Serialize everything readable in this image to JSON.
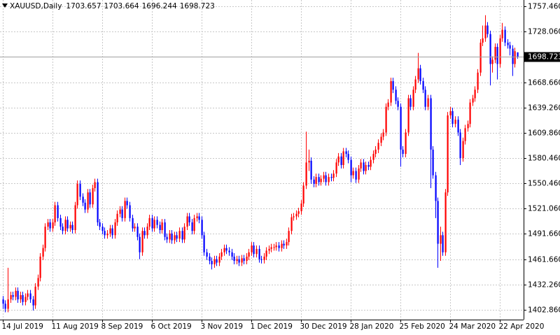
{
  "chart_data": {
    "type": "candlestick",
    "title": "XAUUSD,Daily",
    "up_color": "#ff0000",
    "down_color": "#0000ff",
    "grid": true,
    "xlim": [
      -1.1,
      209.6
    ],
    "xticks": [
      {
        "value": 0,
        "label": "14 Jul 2019"
      },
      {
        "value": 20,
        "label": "11 Aug 2019"
      },
      {
        "value": 40,
        "label": "8 Sep 2019"
      },
      {
        "value": 60,
        "label": "6 Oct 2019"
      },
      {
        "value": 80,
        "label": "3 Nov 2019"
      },
      {
        "value": 100,
        "label": "1 Dec 2019"
      },
      {
        "value": 120,
        "label": "30 Dec 2019"
      },
      {
        "value": 140,
        "label": "28 Jan 2020"
      },
      {
        "value": 160,
        "label": "25 Feb 2020"
      },
      {
        "value": 180,
        "label": "24 Mar 2020"
      },
      {
        "value": 200,
        "label": "22 Apr 2020"
      }
    ],
    "ylim": [
      1391.4,
      1764.8
    ],
    "yticks": [
      {
        "value": 1757.46,
        "label": "1757.460"
      },
      {
        "value": 1728.06,
        "label": "1728.060"
      },
      {
        "value": 1668.66,
        "label": "1668.660"
      },
      {
        "value": 1639.26,
        "label": "1639.260"
      },
      {
        "value": 1609.86,
        "label": "1609.860"
      },
      {
        "value": 1580.46,
        "label": "1580.460"
      },
      {
        "value": 1550.46,
        "label": "1550.460"
      },
      {
        "value": 1521.06,
        "label": "1521.060"
      },
      {
        "value": 1491.66,
        "label": "1491.660"
      },
      {
        "value": 1461.66,
        "label": "1461.660"
      },
      {
        "value": 1432.26,
        "label": "1432.260"
      },
      {
        "value": 1402.86,
        "label": "1402.860"
      }
    ],
    "open": [
      1415,
      1410,
      1404,
      1415,
      1420,
      1418,
      1425,
      1415,
      1420,
      1412,
      1418,
      1422,
      1415,
      1408,
      1430,
      1440,
      1465,
      1475,
      1500,
      1505,
      1498,
      1505,
      1525,
      1510,
      1500,
      1495,
      1508,
      1498,
      1502,
      1496,
      1525,
      1550,
      1535,
      1528,
      1520,
      1540,
      1526,
      1545,
      1552,
      1505,
      1500,
      1495,
      1490,
      1492,
      1498,
      1490,
      1505,
      1515,
      1520,
      1510,
      1530,
      1525,
      1510,
      1498,
      1500,
      1488,
      1470,
      1495,
      1490,
      1500,
      1510,
      1498,
      1508,
      1502,
      1496,
      1505,
      1488,
      1485,
      1492,
      1484,
      1490,
      1486,
      1495,
      1485,
      1500,
      1512,
      1505,
      1495,
      1510,
      1512,
      1508,
      1490,
      1470,
      1465,
      1460,
      1456,
      1462,
      1458,
      1465,
      1470,
      1475,
      1472,
      1470,
      1465,
      1460,
      1462,
      1458,
      1463,
      1460,
      1465,
      1470,
      1478,
      1468,
      1474,
      1462,
      1461,
      1465,
      1472,
      1474,
      1476,
      1476,
      1478,
      1475,
      1480,
      1478,
      1482,
      1495,
      1511,
      1512,
      1515,
      1518,
      1527,
      1548,
      1575,
      1577,
      1555,
      1550,
      1558,
      1552,
      1556,
      1560,
      1552,
      1558,
      1557,
      1562,
      1575,
      1582,
      1572,
      1588,
      1585,
      1578,
      1560,
      1565,
      1555,
      1568,
      1575,
      1565,
      1572,
      1570,
      1578,
      1585,
      1590,
      1598,
      1605,
      1610,
      1640,
      1645,
      1670,
      1660,
      1647,
      1640,
      1590,
      1585,
      1610,
      1650,
      1640,
      1660,
      1672,
      1685,
      1670,
      1660,
      1640,
      1650,
      1590,
      1560,
      1530,
      1480,
      1490,
      1470,
      1540,
      1630,
      1635,
      1620,
      1625,
      1610,
      1580,
      1600,
      1615,
      1620,
      1645,
      1650,
      1660,
      1680,
      1715,
      1720,
      1735,
      1725,
      1690,
      1695,
      1710,
      1690,
      1720,
      1730,
      1715,
      1712,
      1708,
      1690,
      1703.657
    ],
    "high": [
      1419,
      1414,
      1452,
      1424,
      1424,
      1429,
      1429,
      1424,
      1424,
      1422,
      1426,
      1426,
      1419,
      1434,
      1444,
      1469,
      1479,
      1504,
      1509,
      1509,
      1509,
      1529,
      1529,
      1514,
      1504,
      1512,
      1512,
      1506,
      1506,
      1529,
      1554,
      1554,
      1539,
      1532,
      1544,
      1544,
      1549,
      1556,
      1556,
      1509,
      1504,
      1499,
      1496,
      1502,
      1502,
      1509,
      1519,
      1524,
      1524,
      1534,
      1534,
      1529,
      1514,
      1504,
      1504,
      1492,
      1499,
      1499,
      1504,
      1514,
      1514,
      1512,
      1512,
      1506,
      1509,
      1509,
      1492,
      1496,
      1496,
      1494,
      1494,
      1499,
      1499,
      1504,
      1516,
      1516,
      1509,
      1514,
      1516,
      1516,
      1512,
      1494,
      1474,
      1469,
      1464,
      1466,
      1466,
      1469,
      1474,
      1479,
      1479,
      1476,
      1474,
      1469,
      1466,
      1466,
      1467,
      1467,
      1469,
      1474,
      1482,
      1482,
      1478,
      1478,
      1466,
      1469,
      1476,
      1478,
      1480,
      1480,
      1482,
      1482,
      1484,
      1484,
      1486,
      1499,
      1515,
      1516,
      1519,
      1522,
      1531,
      1552,
      1611,
      1590,
      1581,
      1559,
      1562,
      1562,
      1560,
      1564,
      1564,
      1562,
      1562,
      1566,
      1579,
      1586,
      1586,
      1592,
      1592,
      1589,
      1582,
      1569,
      1569,
      1572,
      1579,
      1579,
      1576,
      1576,
      1582,
      1589,
      1594,
      1602,
      1609,
      1614,
      1644,
      1649,
      1674,
      1674,
      1664,
      1651,
      1644,
      1594,
      1614,
      1654,
      1654,
      1664,
      1676,
      1703,
      1689,
      1674,
      1664,
      1654,
      1654,
      1594,
      1564,
      1534,
      1500,
      1494,
      1544,
      1634,
      1640,
      1639,
      1629,
      1629,
      1614,
      1604,
      1619,
      1624,
      1649,
      1654,
      1664,
      1684,
      1719,
      1735,
      1747,
      1739,
      1729,
      1699,
      1714,
      1714,
      1724,
      1738,
      1734,
      1719,
      1716,
      1712,
      1709,
      1703.664
    ],
    "low": [
      1404,
      1400,
      1400,
      1411,
      1414,
      1414,
      1411,
      1411,
      1408,
      1408,
      1414,
      1411,
      1402,
      1404,
      1426,
      1436,
      1461,
      1471,
      1496,
      1494,
      1494,
      1501,
      1506,
      1496,
      1491,
      1491,
      1494,
      1494,
      1492,
      1492,
      1521,
      1531,
      1524,
      1516,
      1516,
      1522,
      1522,
      1541,
      1501,
      1496,
      1491,
      1486,
      1486,
      1488,
      1486,
      1486,
      1501,
      1511,
      1506,
      1506,
      1521,
      1506,
      1494,
      1494,
      1484,
      1462,
      1466,
      1486,
      1486,
      1496,
      1494,
      1494,
      1498,
      1492,
      1492,
      1484,
      1481,
      1481,
      1480,
      1480,
      1482,
      1482,
      1481,
      1481,
      1496,
      1501,
      1491,
      1491,
      1506,
      1504,
      1486,
      1466,
      1461,
      1456,
      1450,
      1452,
      1454,
      1454,
      1461,
      1466,
      1468,
      1466,
      1461,
      1456,
      1456,
      1454,
      1454,
      1456,
      1456,
      1461,
      1466,
      1464,
      1464,
      1458,
      1457,
      1457,
      1461,
      1468,
      1470,
      1472,
      1472,
      1471,
      1471,
      1474,
      1474,
      1478,
      1491,
      1507,
      1508,
      1511,
      1514,
      1523,
      1544,
      1565,
      1550,
      1546,
      1546,
      1548,
      1548,
      1552,
      1548,
      1548,
      1553,
      1553,
      1558,
      1571,
      1568,
      1568,
      1581,
      1574,
      1552,
      1556,
      1551,
      1551,
      1564,
      1561,
      1561,
      1566,
      1566,
      1574,
      1581,
      1586,
      1594,
      1601,
      1606,
      1636,
      1641,
      1656,
      1643,
      1636,
      1570,
      1581,
      1581,
      1606,
      1636,
      1636,
      1656,
      1668,
      1666,
      1656,
      1636,
      1636,
      1545,
      1556,
      1510,
      1452,
      1460,
      1466,
      1466,
      1536,
      1626,
      1616,
      1616,
      1606,
      1572,
      1576,
      1596,
      1611,
      1616,
      1641,
      1646,
      1656,
      1676,
      1711,
      1716,
      1721,
      1665,
      1680,
      1691,
      1672,
      1686,
      1716,
      1711,
      1708,
      1700,
      1676,
      1686,
      1696.244
    ],
    "close": [
      1410,
      1404,
      1415,
      1420,
      1418,
      1425,
      1415,
      1420,
      1412,
      1418,
      1422,
      1415,
      1408,
      1430,
      1440,
      1465,
      1475,
      1500,
      1505,
      1498,
      1505,
      1525,
      1510,
      1500,
      1495,
      1508,
      1498,
      1502,
      1496,
      1525,
      1550,
      1535,
      1528,
      1520,
      1540,
      1526,
      1545,
      1552,
      1505,
      1500,
      1495,
      1490,
      1492,
      1498,
      1490,
      1505,
      1515,
      1520,
      1510,
      1530,
      1525,
      1510,
      1498,
      1500,
      1488,
      1470,
      1495,
      1490,
      1500,
      1510,
      1498,
      1508,
      1502,
      1496,
      1505,
      1488,
      1485,
      1492,
      1484,
      1490,
      1486,
      1495,
      1485,
      1500,
      1512,
      1505,
      1495,
      1510,
      1512,
      1508,
      1490,
      1470,
      1465,
      1460,
      1456,
      1462,
      1458,
      1465,
      1470,
      1475,
      1472,
      1470,
      1465,
      1460,
      1462,
      1458,
      1463,
      1460,
      1465,
      1470,
      1478,
      1468,
      1474,
      1462,
      1461,
      1465,
      1472,
      1474,
      1476,
      1476,
      1478,
      1475,
      1480,
      1478,
      1482,
      1495,
      1511,
      1512,
      1515,
      1518,
      1527,
      1548,
      1575,
      1577,
      1555,
      1550,
      1558,
      1552,
      1556,
      1560,
      1552,
      1558,
      1557,
      1562,
      1575,
      1582,
      1572,
      1588,
      1585,
      1578,
      1560,
      1565,
      1555,
      1568,
      1575,
      1565,
      1572,
      1570,
      1578,
      1585,
      1590,
      1598,
      1605,
      1610,
      1640,
      1645,
      1670,
      1660,
      1647,
      1640,
      1590,
      1585,
      1610,
      1650,
      1640,
      1660,
      1672,
      1685,
      1670,
      1660,
      1640,
      1650,
      1590,
      1560,
      1530,
      1480,
      1490,
      1470,
      1540,
      1630,
      1635,
      1620,
      1625,
      1610,
      1580,
      1600,
      1615,
      1620,
      1645,
      1650,
      1660,
      1680,
      1715,
      1720,
      1735,
      1725,
      1690,
      1695,
      1710,
      1690,
      1720,
      1730,
      1715,
      1712,
      1708,
      1690,
      1705,
      1698.723
    ]
  }
}
